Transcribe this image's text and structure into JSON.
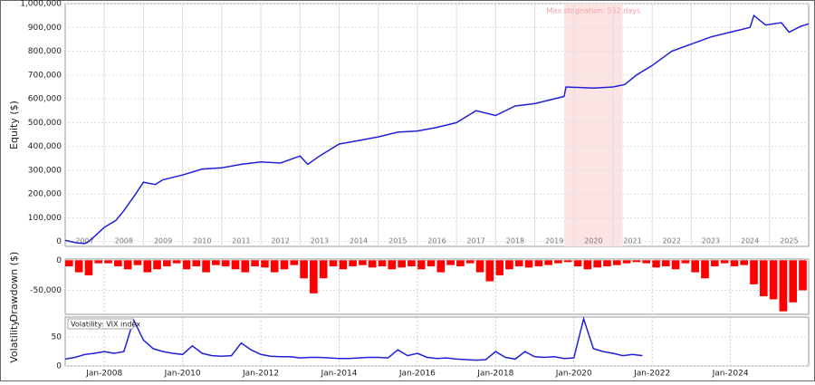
{
  "chart_data": [
    {
      "type": "line",
      "ylabel": "Equity ($)",
      "xlim": [
        2007,
        2026
      ],
      "ylim": [
        -20000,
        1000000
      ],
      "yticks": [
        0,
        {
          "value": 100000,
          "label": "100,000"
        },
        {
          "value": 200000,
          "label": "200,000"
        },
        {
          "value": 300000,
          "label": "300,000"
        },
        {
          "value": 400000,
          "label": "400,000"
        },
        {
          "value": 500000,
          "label": "500,000"
        },
        {
          "value": 600000,
          "label": "600,000"
        },
        {
          "value": 700000,
          "label": "700,000"
        },
        {
          "value": 800000,
          "label": "800,000"
        },
        {
          "value": 900000,
          "label": "900,000"
        },
        {
          "value": 1000000,
          "label": "1,000,000"
        }
      ],
      "xticks": [
        {
          "value": 2007.5,
          "label": "2007"
        },
        {
          "value": 2008.5,
          "label": "2008"
        },
        {
          "value": 2009.5,
          "label": "2009"
        },
        {
          "value": 2010.5,
          "label": "2010"
        },
        {
          "value": 2011.5,
          "label": "2011"
        },
        {
          "value": 2012.5,
          "label": "2012"
        },
        {
          "value": 2013.5,
          "label": "2013"
        },
        {
          "value": 2014.5,
          "label": "2014"
        },
        {
          "value": 2015.5,
          "label": "2015"
        },
        {
          "value": 2016.5,
          "label": "2016"
        },
        {
          "value": 2017.5,
          "label": "2017"
        },
        {
          "value": 2018.5,
          "label": "2018"
        },
        {
          "value": 2019.5,
          "label": "2019"
        },
        {
          "value": 2020.5,
          "label": "2020"
        },
        {
          "value": 2021.5,
          "label": "2021"
        },
        {
          "value": 2022.5,
          "label": "2022"
        },
        {
          "value": 2023.5,
          "label": "2023"
        },
        {
          "value": 2024.5,
          "label": "2024"
        },
        {
          "value": 2025.5,
          "label": "2025"
        }
      ],
      "xgrid": [
        2008,
        2009,
        2010,
        2011,
        2012,
        2013,
        2014,
        2015,
        2016,
        2017,
        2018,
        2019,
        2020,
        2021,
        2022,
        2023,
        2024,
        2025
      ],
      "annotation": {
        "text": "Max stagnation: 552 days",
        "x": [
          2019.75,
          2021.25
        ]
      },
      "x": [
        2007.0,
        2007.3,
        2007.5,
        2007.6,
        2007.8,
        2008.0,
        2008.3,
        2008.5,
        2008.8,
        2009.0,
        2009.3,
        2009.5,
        2010.0,
        2010.5,
        2011.0,
        2011.5,
        2012.0,
        2012.5,
        2013.0,
        2013.2,
        2013.5,
        2014.0,
        2014.5,
        2015.0,
        2015.5,
        2016.0,
        2016.5,
        2017.0,
        2017.5,
        2018.0,
        2018.5,
        2019.0,
        2019.5,
        2019.75,
        2019.8,
        2020.5,
        2021.0,
        2021.3,
        2021.6,
        2022.0,
        2022.5,
        2023.0,
        2023.5,
        2024.0,
        2024.5,
        2024.6,
        2024.9,
        2025.3,
        2025.5,
        2025.8,
        2026.0
      ],
      "series": [
        {
          "color": "#2020d8",
          "values": [
            5000,
            -5000,
            -8000,
            0,
            30000,
            60000,
            90000,
            130000,
            200000,
            250000,
            240000,
            260000,
            280000,
            305000,
            310000,
            325000,
            335000,
            330000,
            360000,
            325000,
            360000,
            410000,
            425000,
            440000,
            460000,
            465000,
            480000,
            500000,
            550000,
            530000,
            570000,
            580000,
            600000,
            610000,
            650000,
            645000,
            650000,
            660000,
            700000,
            740000,
            800000,
            830000,
            860000,
            880000,
            900000,
            950000,
            910000,
            920000,
            880000,
            905000,
            915000
          ]
        }
      ]
    },
    {
      "type": "bar",
      "ylabel": "Drawdown ($)",
      "xlim": [
        2007,
        2026
      ],
      "ylim": [
        -90000,
        2000
      ],
      "yticks": [
        0,
        {
          "value": -50000,
          "label": "-50,000"
        }
      ],
      "x": [
        2007.0,
        2007.25,
        2007.5,
        2007.75,
        2008.0,
        2008.25,
        2008.5,
        2008.75,
        2009.0,
        2009.25,
        2009.5,
        2009.75,
        2010.0,
        2010.25,
        2010.5,
        2010.75,
        2011.0,
        2011.25,
        2011.5,
        2011.75,
        2012.0,
        2012.25,
        2012.5,
        2012.75,
        2013.0,
        2013.25,
        2013.5,
        2013.75,
        2014.0,
        2014.25,
        2014.5,
        2014.75,
        2015.0,
        2015.25,
        2015.5,
        2015.75,
        2016.0,
        2016.25,
        2016.5,
        2016.75,
        2017.0,
        2017.25,
        2017.5,
        2017.75,
        2018.0,
        2018.25,
        2018.5,
        2018.75,
        2019.0,
        2019.25,
        2019.5,
        2019.75,
        2020.0,
        2020.25,
        2020.5,
        2020.75,
        2021.0,
        2021.25,
        2021.5,
        2021.75,
        2022.0,
        2022.25,
        2022.5,
        2022.75,
        2023.0,
        2023.25,
        2023.5,
        2023.75,
        2024.0,
        2024.25,
        2024.5,
        2024.75,
        2025.0,
        2025.25,
        2025.5,
        2025.75
      ],
      "series": [
        {
          "color": "#ff0000",
          "values": [
            -10000,
            -20000,
            -25000,
            -5000,
            -5000,
            -10000,
            -15000,
            -8000,
            -20000,
            -15000,
            -10000,
            -5000,
            -15000,
            -10000,
            -20000,
            -8000,
            -10000,
            -15000,
            -20000,
            -10000,
            -12000,
            -20000,
            -15000,
            -8000,
            -30000,
            -55000,
            -30000,
            -10000,
            -15000,
            -10000,
            -8000,
            -12000,
            -10000,
            -15000,
            -12000,
            -10000,
            -15000,
            -10000,
            -20000,
            -8000,
            -10000,
            -5000,
            -20000,
            -35000,
            -25000,
            -15000,
            -10000,
            -12000,
            -10000,
            -8000,
            -5000,
            -3000,
            -10000,
            -15000,
            -12000,
            -10000,
            -8000,
            -5000,
            -3000,
            -5000,
            -12000,
            -10000,
            -15000,
            -5000,
            -20000,
            -30000,
            -10000,
            -5000,
            -10000,
            -8000,
            -40000,
            -60000,
            -65000,
            -85000,
            -70000,
            -50000
          ]
        }
      ]
    },
    {
      "type": "line",
      "ylabel": "Volatility",
      "xlim": [
        2007,
        2026
      ],
      "ylim": [
        0,
        85
      ],
      "yticks": [
        0,
        50
      ],
      "xticks": [
        {
          "value": 2008,
          "label": "Jan-2008"
        },
        {
          "value": 2010,
          "label": "Jan-2010"
        },
        {
          "value": 2012,
          "label": "Jan-2012"
        },
        {
          "value": 2014,
          "label": "Jan-2014"
        },
        {
          "value": 2016,
          "label": "Jan-2016"
        },
        {
          "value": 2018,
          "label": "Jan-2018"
        },
        {
          "value": 2020,
          "label": "Jan-2020"
        },
        {
          "value": 2022,
          "label": "Jan-2022"
        },
        {
          "value": 2024,
          "label": "Jan-2024"
        }
      ],
      "x": [
        2007.0,
        2007.25,
        2007.5,
        2007.75,
        2008.0,
        2008.25,
        2008.5,
        2008.75,
        2009.0,
        2009.25,
        2009.5,
        2009.75,
        2010.0,
        2010.25,
        2010.5,
        2010.75,
        2011.0,
        2011.25,
        2011.5,
        2011.75,
        2012.0,
        2012.25,
        2012.5,
        2012.75,
        2013.0,
        2013.25,
        2013.5,
        2013.75,
        2014.0,
        2014.25,
        2014.5,
        2014.75,
        2015.0,
        2015.25,
        2015.5,
        2015.75,
        2016.0,
        2016.25,
        2016.5,
        2016.75,
        2017.0,
        2017.25,
        2017.5,
        2017.75,
        2018.0,
        2018.25,
        2018.5,
        2018.75,
        2019.0,
        2019.25,
        2019.5,
        2019.75,
        2020.0,
        2020.25,
        2020.5,
        2020.75,
        2021.0,
        2021.25,
        2021.5,
        2021.75
      ],
      "series": [
        {
          "name": "Volatility: VIX index",
          "color": "#2020d8",
          "values": [
            12,
            15,
            20,
            22,
            25,
            22,
            25,
            80,
            45,
            30,
            25,
            22,
            20,
            35,
            22,
            18,
            17,
            18,
            40,
            28,
            20,
            17,
            16,
            16,
            14,
            15,
            15,
            14,
            13,
            13,
            14,
            15,
            15,
            14,
            28,
            18,
            22,
            15,
            13,
            14,
            12,
            11,
            10,
            11,
            25,
            15,
            12,
            25,
            16,
            15,
            16,
            13,
            14,
            82,
            30,
            25,
            22,
            18,
            20,
            18
          ]
        }
      ]
    }
  ]
}
